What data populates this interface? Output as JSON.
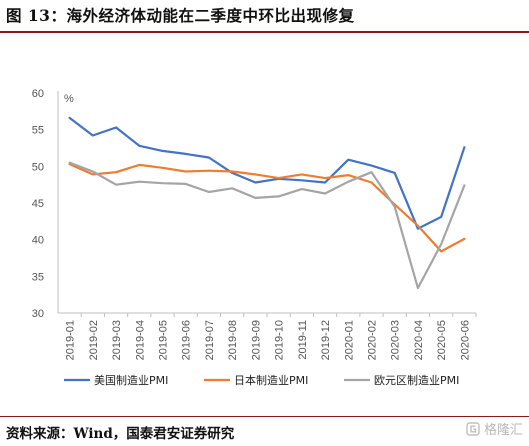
{
  "figure": {
    "title": "图 13：海外经济体动能在二季度中环比出现修复",
    "source": "资料来源：Wind，国泰君安证券研究",
    "watermark_text": "格隆汇"
  },
  "chart_data": {
    "type": "line",
    "title": "",
    "xlabel": "",
    "ylabel": "%",
    "ylim": [
      30,
      60
    ],
    "yticks": [
      30,
      35,
      40,
      45,
      50,
      55,
      60
    ],
    "grid": false,
    "legend_position": "bottom",
    "categories": [
      "2019-01",
      "2019-02",
      "2019-03",
      "2019-04",
      "2019-05",
      "2019-06",
      "2019-07",
      "2019-08",
      "2019-09",
      "2019-10",
      "2019-11",
      "2019-12",
      "2020-01",
      "2020-02",
      "2020-03",
      "2020-04",
      "2020-05",
      "2020-06"
    ],
    "series": [
      {
        "name": "美国制造业PMI",
        "color": "#4472c4",
        "values": [
          56.6,
          54.2,
          55.3,
          52.8,
          52.1,
          51.7,
          51.2,
          49.1,
          47.8,
          48.3,
          48.1,
          47.8,
          50.9,
          50.1,
          49.1,
          41.5,
          43.1,
          52.6
        ]
      },
      {
        "name": "日本制造业PMI",
        "color": "#ed7d31",
        "values": [
          50.3,
          48.9,
          49.2,
          50.2,
          49.8,
          49.3,
          49.4,
          49.3,
          48.9,
          48.4,
          48.9,
          48.4,
          48.8,
          47.8,
          44.8,
          41.9,
          38.4,
          40.1
        ]
      },
      {
        "name": "欧元区制造业PMI",
        "color": "#a5a5a5",
        "values": [
          50.5,
          49.3,
          47.5,
          47.9,
          47.7,
          47.6,
          46.5,
          47.0,
          45.7,
          45.9,
          46.9,
          46.3,
          47.9,
          49.2,
          44.5,
          33.4,
          39.4,
          47.4
        ]
      }
    ]
  }
}
